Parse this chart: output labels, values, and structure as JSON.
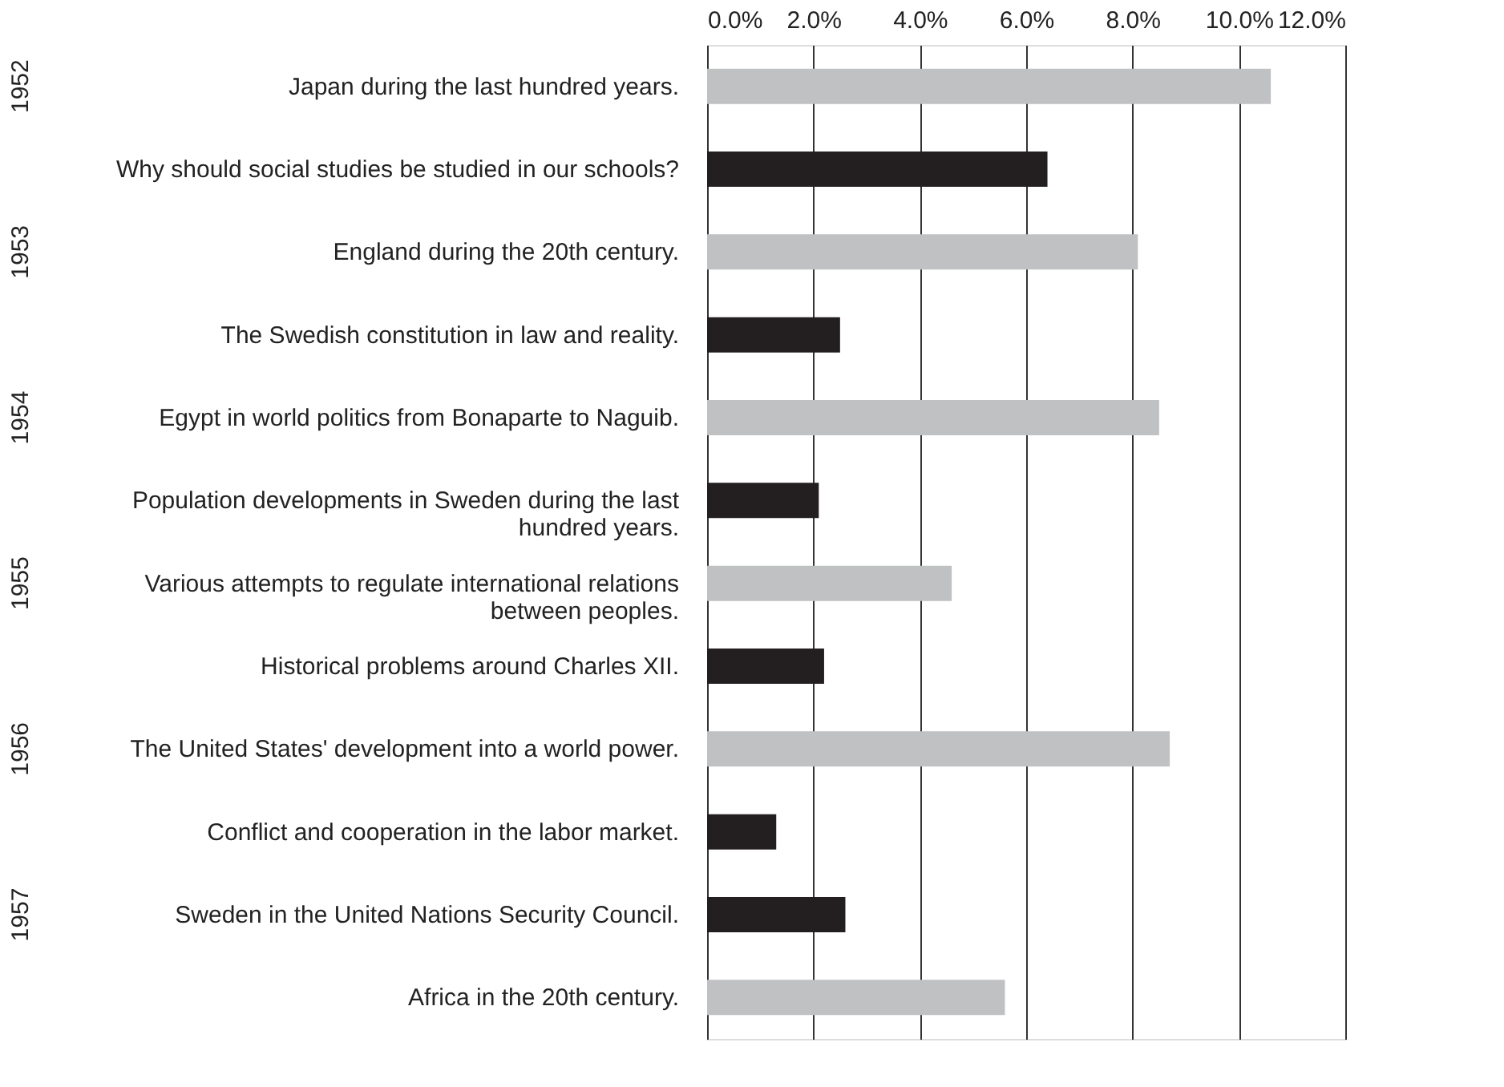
{
  "chart_data": {
    "type": "bar",
    "orientation": "horizontal",
    "categories": [
      "Japan during the last hundred years.",
      "Why should social studies be studied in our schools?",
      "England during the 20th century.",
      "The Swedish constitution in law and reality.",
      "Egypt in world politics from Bonaparte to Naguib.",
      "Population developments in Sweden during the last hundred years.",
      "Various attempts to regulate international relations between peoples.",
      "Historical problems around Charles XII.",
      "The United States' development into a world power.",
      "Conflict and cooperation in the labor market.",
      "Sweden in the United Nations Security Council.",
      "Africa in the 20th century."
    ],
    "values": [
      10.6,
      6.4,
      8.1,
      2.5,
      8.5,
      2.1,
      4.6,
      2.2,
      8.7,
      1.3,
      2.6,
      5.6
    ],
    "colors": [
      "#c0c1c3",
      "#231f20",
      "#c0c1c3",
      "#231f20",
      "#c0c1c3",
      "#231f20",
      "#c0c1c3",
      "#231f20",
      "#c0c1c3",
      "#231f20",
      "#231f20",
      "#c0c1c3"
    ],
    "xlim": [
      0,
      12
    ],
    "xticks": [
      {
        "value": 0,
        "label": "0.0%"
      },
      {
        "value": 2,
        "label": "2.0%"
      },
      {
        "value": 4,
        "label": "4.0%"
      },
      {
        "value": 6,
        "label": "6.0%"
      },
      {
        "value": 8,
        "label": "8.0%"
      },
      {
        "value": 10,
        "label": "10.0%"
      },
      {
        "value": 12,
        "label": "12.0%"
      }
    ],
    "grid": "x",
    "annotations": [
      "1952",
      "1953",
      "1954",
      "1955",
      "1956",
      "1957"
    ]
  }
}
